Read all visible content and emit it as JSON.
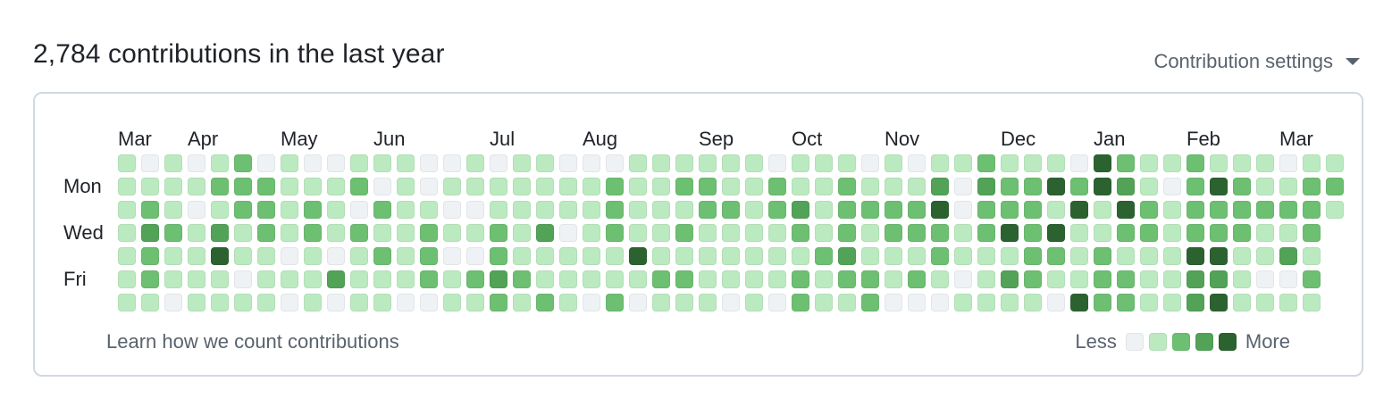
{
  "header": {
    "title": "2,784 contributions in the last year",
    "settings_label": "Contribution settings",
    "settings_icon": "caret-down-icon"
  },
  "graph": {
    "months": [
      {
        "label": "Mar",
        "col": 0
      },
      {
        "label": "Apr",
        "col": 3
      },
      {
        "label": "May",
        "col": 7
      },
      {
        "label": "Jun",
        "col": 11
      },
      {
        "label": "Jul",
        "col": 16
      },
      {
        "label": "Aug",
        "col": 20
      },
      {
        "label": "Sep",
        "col": 25
      },
      {
        "label": "Oct",
        "col": 29
      },
      {
        "label": "Nov",
        "col": 33
      },
      {
        "label": "Dec",
        "col": 38
      },
      {
        "label": "Jan",
        "col": 42
      },
      {
        "label": "Feb",
        "col": 46
      },
      {
        "label": "Mar",
        "col": 50
      }
    ],
    "day_labels": [
      {
        "label": "Mon",
        "row": 1
      },
      {
        "label": "Wed",
        "row": 3
      },
      {
        "label": "Fri",
        "row": 5
      }
    ],
    "level_colors": [
      "#eff2f5",
      "#bbeac0",
      "#6dbf71",
      "#52a257",
      "#2c6230"
    ],
    "rows": [
      [
        1,
        0,
        1,
        0,
        1,
        2,
        0,
        1,
        0,
        0,
        1,
        1,
        1,
        0,
        0,
        1,
        0,
        1,
        1,
        0,
        0,
        0,
        1,
        1,
        1,
        1,
        1,
        1,
        0,
        1,
        1,
        1,
        0,
        1,
        0,
        1,
        1,
        2,
        1,
        1,
        1,
        0,
        4,
        2,
        1,
        1,
        2,
        1,
        1,
        1,
        0,
        1,
        1
      ],
      [
        1,
        1,
        1,
        1,
        2,
        2,
        2,
        1,
        1,
        1,
        2,
        0,
        1,
        0,
        1,
        1,
        1,
        1,
        1,
        1,
        1,
        2,
        1,
        1,
        2,
        2,
        1,
        1,
        2,
        1,
        1,
        2,
        1,
        1,
        1,
        3,
        0,
        3,
        2,
        2,
        4,
        2,
        4,
        3,
        1,
        0,
        2,
        4,
        2,
        1,
        1,
        2,
        2
      ],
      [
        1,
        2,
        1,
        0,
        1,
        2,
        2,
        1,
        2,
        1,
        0,
        2,
        1,
        1,
        0,
        0,
        1,
        1,
        1,
        1,
        1,
        2,
        1,
        1,
        1,
        2,
        2,
        1,
        2,
        3,
        1,
        2,
        2,
        2,
        2,
        4,
        0,
        2,
        2,
        2,
        1,
        4,
        1,
        4,
        2,
        1,
        2,
        2,
        2,
        2,
        2,
        2,
        1
      ],
      [
        1,
        3,
        2,
        1,
        3,
        1,
        2,
        1,
        2,
        1,
        2,
        1,
        1,
        2,
        1,
        1,
        2,
        1,
        3,
        0,
        1,
        2,
        1,
        1,
        2,
        1,
        1,
        1,
        1,
        2,
        1,
        2,
        1,
        2,
        2,
        2,
        1,
        2,
        4,
        2,
        4,
        1,
        1,
        2,
        2,
        1,
        2,
        2,
        2,
        1,
        1,
        2
      ],
      [
        1,
        2,
        1,
        1,
        4,
        1,
        1,
        0,
        1,
        0,
        1,
        2,
        1,
        2,
        0,
        0,
        2,
        1,
        1,
        1,
        1,
        1,
        4,
        1,
        1,
        1,
        1,
        1,
        1,
        1,
        2,
        3,
        1,
        1,
        1,
        2,
        1,
        1,
        1,
        2,
        2,
        1,
        2,
        1,
        1,
        1,
        4,
        4,
        1,
        1,
        3,
        1
      ],
      [
        1,
        2,
        1,
        1,
        1,
        0,
        1,
        1,
        1,
        3,
        1,
        1,
        1,
        2,
        1,
        2,
        3,
        2,
        1,
        1,
        1,
        1,
        1,
        2,
        2,
        1,
        1,
        1,
        1,
        2,
        1,
        2,
        2,
        1,
        2,
        1,
        0,
        1,
        3,
        2,
        1,
        1,
        2,
        2,
        1,
        1,
        3,
        3,
        1,
        0,
        0,
        2
      ],
      [
        1,
        1,
        0,
        1,
        1,
        1,
        1,
        0,
        1,
        0,
        1,
        1,
        0,
        0,
        1,
        1,
        2,
        1,
        2,
        1,
        0,
        2,
        0,
        1,
        1,
        1,
        0,
        1,
        0,
        2,
        1,
        1,
        2,
        0,
        0,
        0,
        1,
        1,
        1,
        1,
        0,
        4,
        2,
        2,
        1,
        1,
        3,
        4,
        1,
        1,
        1,
        1
      ]
    ]
  },
  "footer": {
    "learn_link": "Learn how we count contributions",
    "legend_less": "Less",
    "legend_more": "More"
  }
}
